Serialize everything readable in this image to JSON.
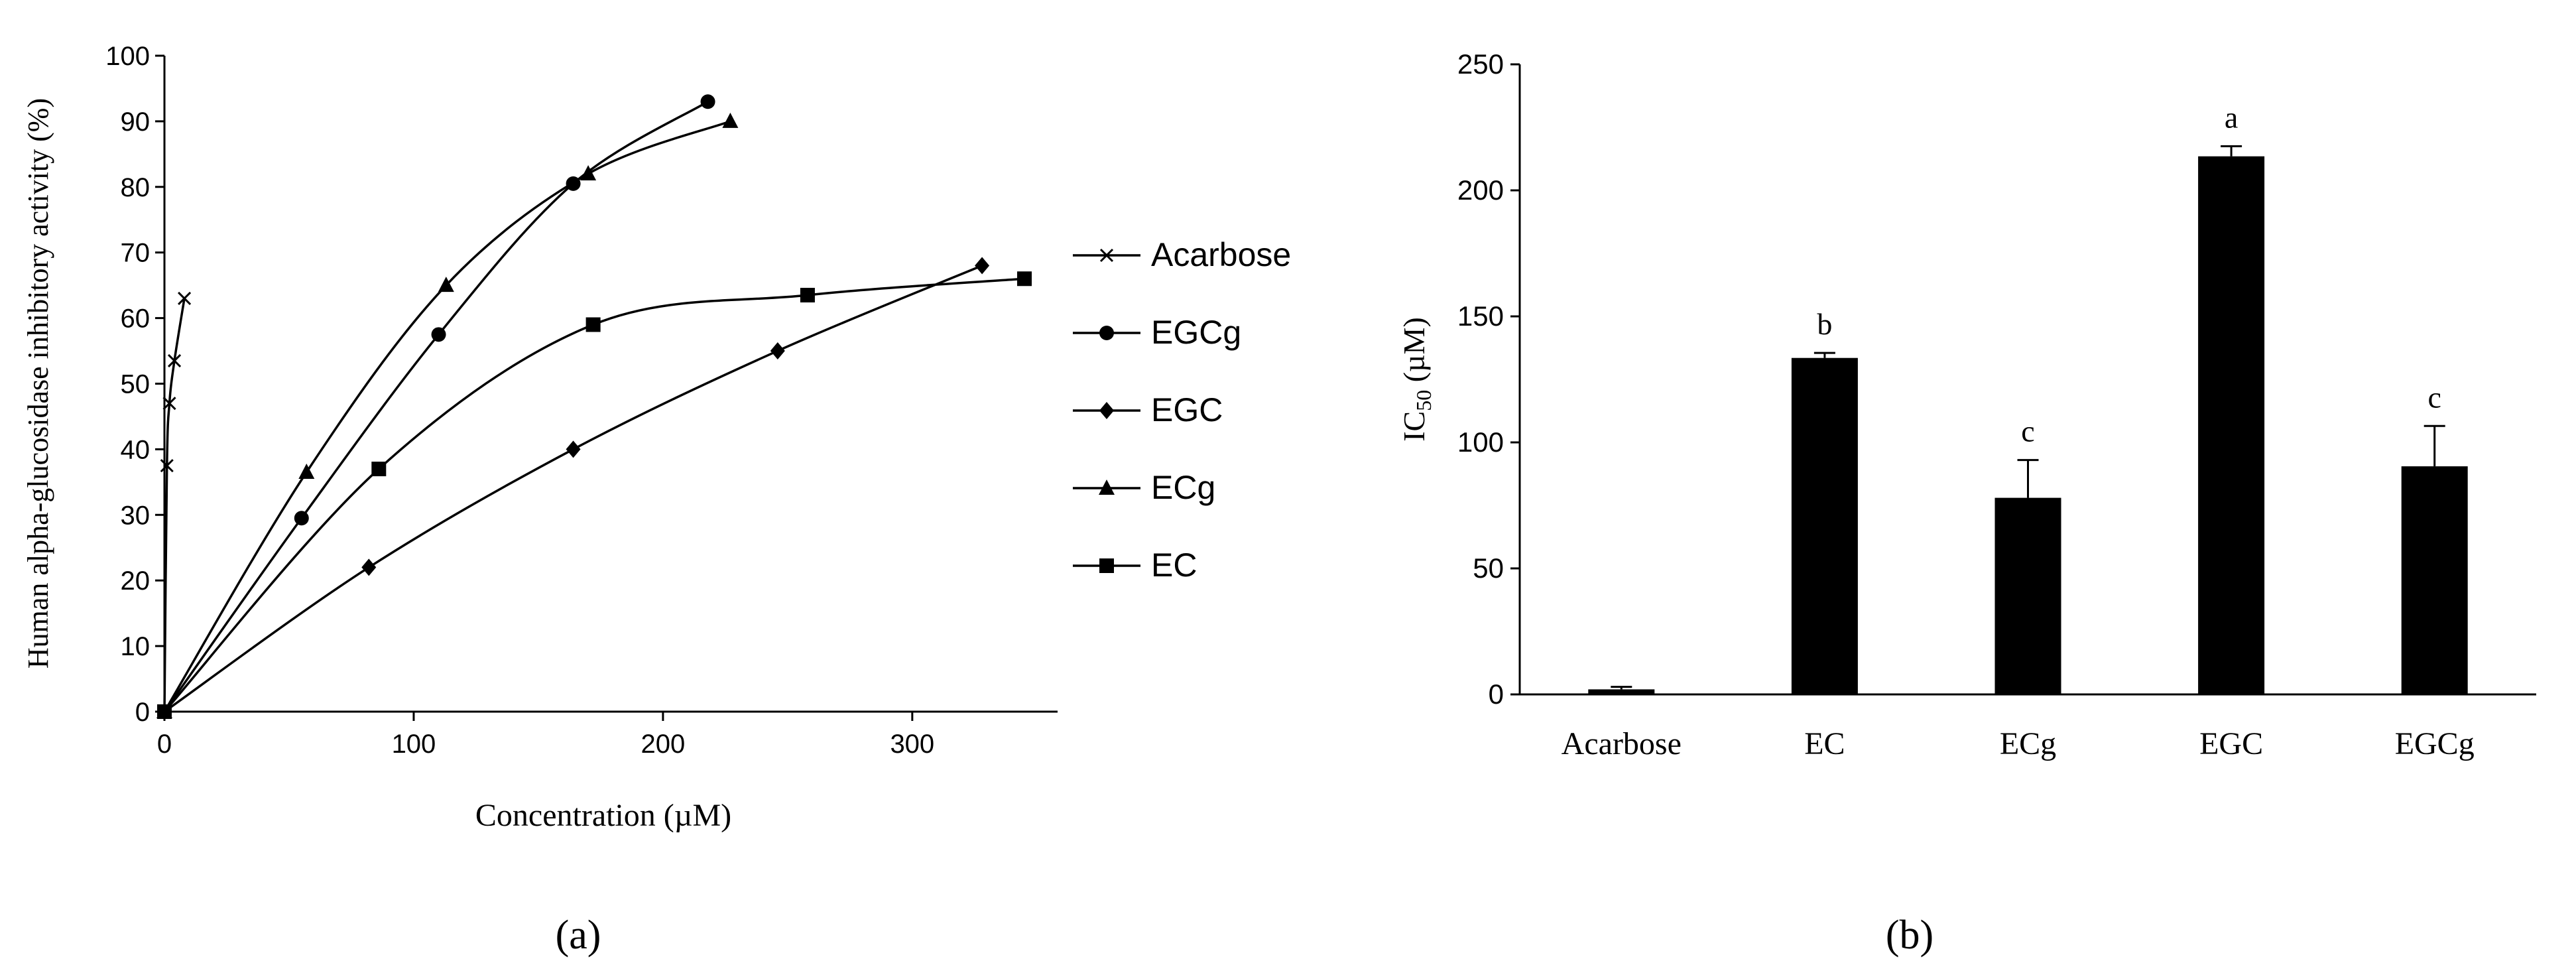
{
  "panel_a_label": "(a)",
  "panel_b_label": "(b)",
  "chart_data": [
    {
      "type": "line",
      "xlabel": "Concentration (µM)",
      "ylabel": "Human alpha-glucosidase  inhibitory activity (%)",
      "xlim": [
        0,
        345
      ],
      "ylim": [
        0,
        100
      ],
      "x_ticks": [
        "0",
        "100",
        "200",
        "300"
      ],
      "y_ticks": [
        "0",
        "10",
        "20",
        "30",
        "40",
        "50",
        "60",
        "70",
        "80",
        "90",
        "100"
      ],
      "grid": false,
      "legend_position": "right",
      "series": [
        {
          "name": "Acarbose",
          "marker": "x",
          "points": [
            [
              0,
              0
            ],
            [
              1,
              37.5
            ],
            [
              2,
              47
            ],
            [
              4,
              53.5
            ],
            [
              8,
              63
            ]
          ]
        },
        {
          "name": "EGCg",
          "marker": "circle",
          "points": [
            [
              0,
              0
            ],
            [
              55,
              29.5
            ],
            [
              110,
              57.5
            ],
            [
              164,
              80.5
            ],
            [
              218,
              93
            ]
          ]
        },
        {
          "name": "EGC",
          "marker": "diamond",
          "points": [
            [
              0,
              0
            ],
            [
              82,
              22
            ],
            [
              164,
              40
            ],
            [
              246,
              55
            ],
            [
              328,
              68
            ]
          ]
        },
        {
          "name": "ECg",
          "marker": "triangle",
          "points": [
            [
              0,
              0
            ],
            [
              57,
              36.5
            ],
            [
              113,
              65
            ],
            [
              170,
              82
            ],
            [
              227,
              90
            ]
          ]
        },
        {
          "name": "EC",
          "marker": "square",
          "points": [
            [
              0,
              0
            ],
            [
              86,
              37
            ],
            [
              172,
              59
            ],
            [
              258,
              63.5
            ],
            [
              345,
              66
            ]
          ]
        }
      ]
    },
    {
      "type": "bar",
      "ylabel": "IC50 (µM)",
      "ylabel_main": "IC",
      "ylabel_sub": "50",
      "ylabel_unit": " (µM)",
      "ylim": [
        0,
        250
      ],
      "y_ticks": [
        "0",
        "50",
        "100",
        "150",
        "200",
        "250"
      ],
      "categories": [
        "Acarbose",
        "EC",
        "ECg",
        "EGC",
        "EGCg"
      ],
      "values": [
        2,
        133.5,
        78,
        213.5,
        90.5
      ],
      "errors": [
        1,
        2,
        15,
        4,
        16
      ],
      "significance_letters": [
        "",
        "b",
        "c",
        "a",
        "c"
      ],
      "bar_color": "#000000"
    }
  ]
}
